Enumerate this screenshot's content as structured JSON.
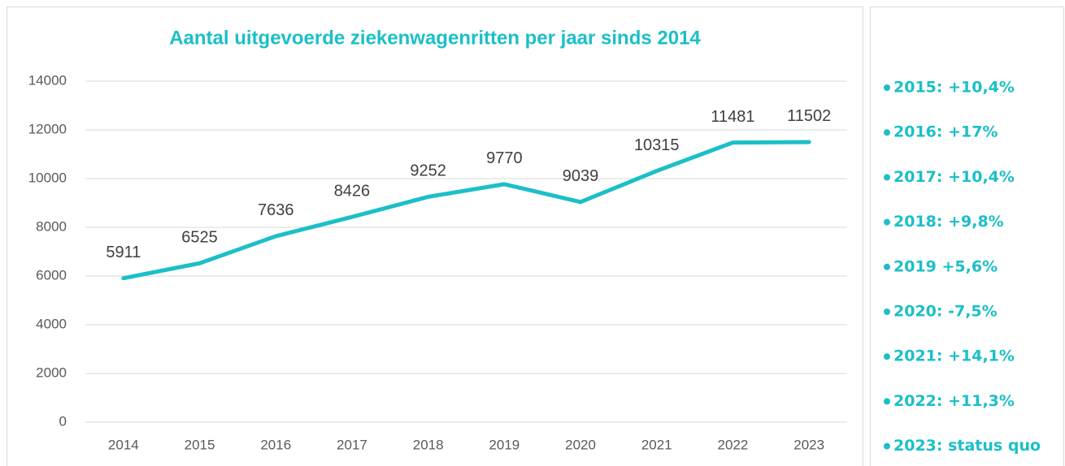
{
  "chart_data": {
    "type": "line",
    "title": "Aantal uitgevoerde ziekenwagenritten per jaar sinds 2014",
    "categories": [
      "2014",
      "2015",
      "2016",
      "2017",
      "2018",
      "2019",
      "2020",
      "2021",
      "2022",
      "2023"
    ],
    "values": [
      5911,
      6525,
      7636,
      8426,
      9252,
      9770,
      9039,
      10315,
      11481,
      11502
    ],
    "color": "#1bbfc8",
    "ylim": [
      0,
      14000
    ],
    "yticks": [
      0,
      2000,
      4000,
      6000,
      8000,
      10000,
      12000,
      14000
    ],
    "grid": true,
    "annotations": [
      "2015: +10,4%",
      "2016: +17%",
      "2017: +10,4%",
      "2018: +9,8%",
      "2019 +5,6%",
      "2020: -7,5%",
      "2021: +14,1%",
      "2022: +11,3%",
      "2023: status quo"
    ]
  }
}
